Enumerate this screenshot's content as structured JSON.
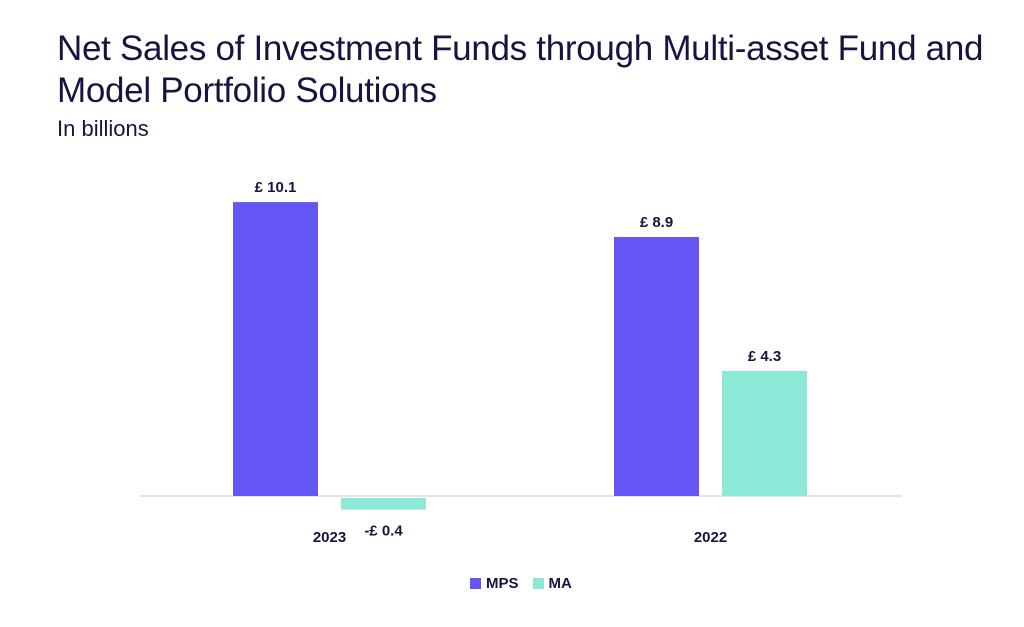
{
  "title": "Net Sales of Investment Funds through Multi-asset Fund and Model Portfolio Solutions",
  "subtitle": "In billions",
  "chart_data": {
    "type": "bar",
    "title": "Net Sales of Investment Funds through Multi-asset Fund and Model Portfolio Solutions",
    "subtitle": "In billions",
    "categories": [
      "2023",
      "2022"
    ],
    "series": [
      {
        "name": "MPS",
        "color": "#6655f5",
        "values": [
          10.1,
          8.9
        ],
        "labels": [
          "£ 10.1",
          "£ 8.9"
        ]
      },
      {
        "name": "MA",
        "color": "#8ee8d8",
        "values": [
          -0.4,
          4.3
        ],
        "labels": [
          "-£ 0.4",
          "£ 4.3"
        ]
      }
    ],
    "ylim": [
      -0.4,
      10.1
    ],
    "grid": false,
    "legend": "bottom-center",
    "xlabel": "",
    "ylabel": ""
  }
}
